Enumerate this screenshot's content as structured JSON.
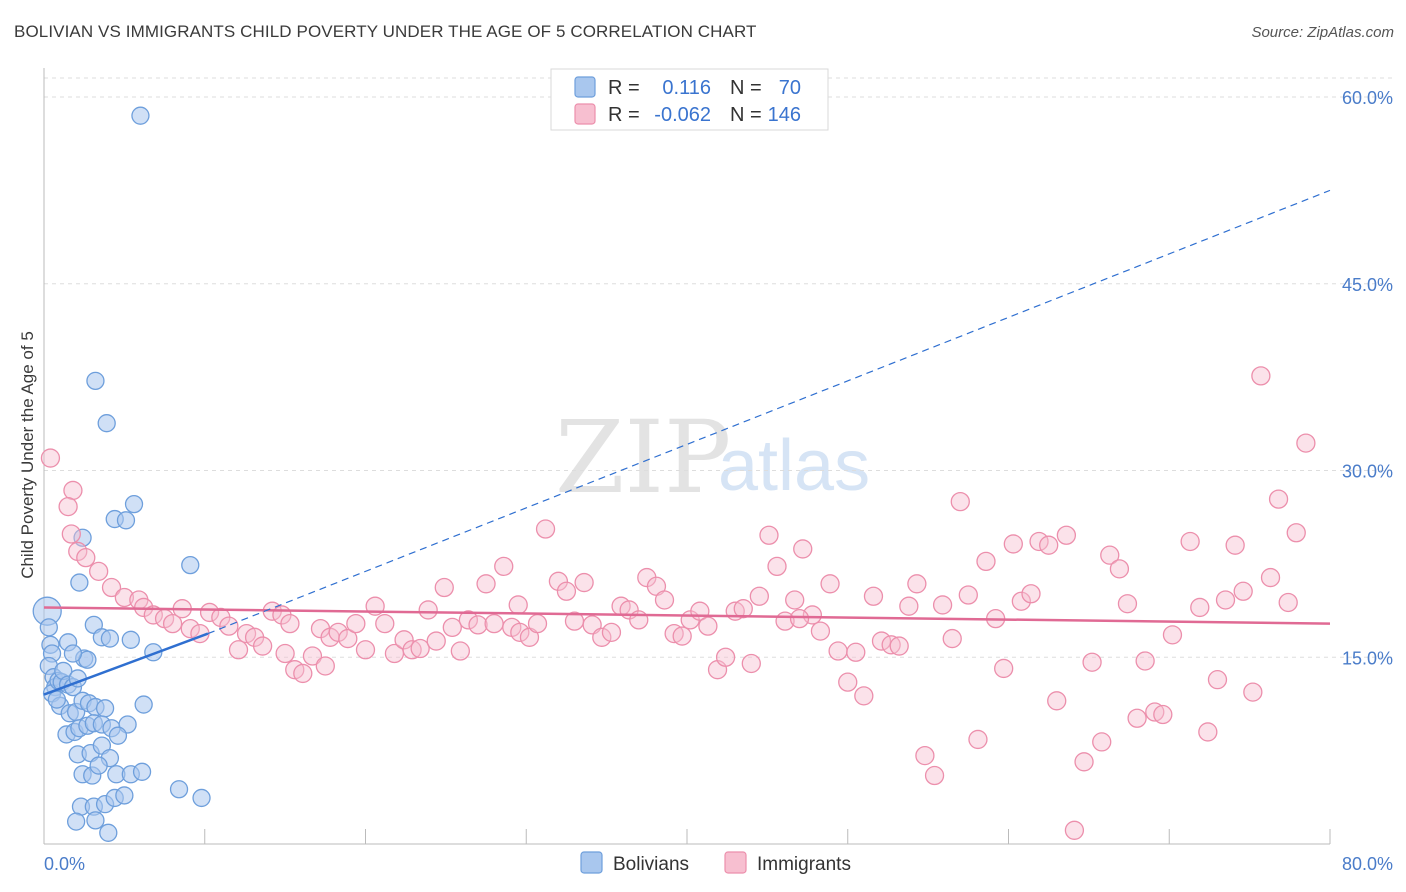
{
  "title": "BOLIVIAN VS IMMIGRANTS CHILD POVERTY UNDER THE AGE OF 5 CORRELATION CHART",
  "source": "Source: ZipAtlas.com",
  "watermark": {
    "zip": "ZIP",
    "atlas": "atlas"
  },
  "legend": {
    "r_label": "R =",
    "n_label": "N =",
    "rows": [
      {
        "series": "Bolivians",
        "r": "0.116",
        "n": "70"
      },
      {
        "series": "Immigrants",
        "r": "-0.062",
        "n": "146"
      }
    ]
  },
  "colors": {
    "bolivians_fill": "#a9c7ee",
    "bolivians_stroke": "#6e9fdc",
    "bolivians_line": "#2f6fd0",
    "immigrants_fill": "#f7bfd0",
    "immigrants_stroke": "#ec8fac",
    "immigrants_line": "#e06a94",
    "axis_text": "#4a7cc9",
    "grid": "#dddddd"
  },
  "chart_data": {
    "type": "scatter",
    "title": "BOLIVIAN VS IMMIGRANTS CHILD POVERTY UNDER THE AGE OF 5 CORRELATION CHART",
    "xlabel": "",
    "ylabel": "Child Poverty Under the Age of 5",
    "xlim": [
      0,
      80
    ],
    "ylim": [
      0,
      60
    ],
    "x_tick_labels": [
      "0.0%",
      "80.0%"
    ],
    "y_ticks": [
      15,
      30,
      45,
      60
    ],
    "y_tick_labels": [
      "15.0%",
      "30.0%",
      "45.0%",
      "60.0%"
    ],
    "grid": true,
    "legend_position": "top-center",
    "bottom_legend": [
      "Bolivians",
      "Immigrants"
    ],
    "series": [
      {
        "name": "Bolivians",
        "r": 0.116,
        "n": 70,
        "trend_solid": {
          "x": [
            0,
            10.2
          ],
          "y": [
            12.0,
            16.9
          ]
        },
        "trend_dashed": {
          "x": [
            10.2,
            80
          ],
          "y": [
            16.9,
            52.5
          ]
        },
        "points": [
          [
            0.2,
            18.7
          ],
          [
            0.3,
            17.4
          ],
          [
            0.4,
            16.0
          ],
          [
            0.5,
            15.3
          ],
          [
            0.3,
            14.3
          ],
          [
            0.6,
            13.4
          ],
          [
            0.7,
            12.6
          ],
          [
            0.5,
            12.1
          ],
          [
            0.9,
            13.1
          ],
          [
            1.1,
            13.0
          ],
          [
            1.2,
            13.9
          ],
          [
            1.5,
            12.8
          ],
          [
            1.8,
            12.6
          ],
          [
            2.1,
            13.3
          ],
          [
            2.5,
            14.9
          ],
          [
            1.0,
            11.1
          ],
          [
            1.6,
            10.5
          ],
          [
            2.0,
            10.6
          ],
          [
            2.4,
            11.5
          ],
          [
            2.8,
            11.3
          ],
          [
            3.2,
            11.0
          ],
          [
            3.8,
            10.9
          ],
          [
            1.4,
            8.8
          ],
          [
            1.9,
            9.0
          ],
          [
            2.2,
            9.3
          ],
          [
            2.7,
            9.5
          ],
          [
            3.1,
            9.7
          ],
          [
            3.6,
            9.6
          ],
          [
            4.2,
            9.3
          ],
          [
            5.2,
            9.6
          ],
          [
            4.6,
            8.7
          ],
          [
            2.1,
            7.2
          ],
          [
            2.9,
            7.3
          ],
          [
            3.6,
            7.9
          ],
          [
            4.1,
            6.9
          ],
          [
            2.4,
            5.6
          ],
          [
            3.0,
            5.5
          ],
          [
            3.4,
            6.3
          ],
          [
            4.5,
            5.6
          ],
          [
            5.4,
            5.6
          ],
          [
            6.1,
            5.8
          ],
          [
            2.3,
            3.0
          ],
          [
            3.1,
            3.0
          ],
          [
            3.8,
            3.2
          ],
          [
            4.4,
            3.7
          ],
          [
            5.0,
            3.9
          ],
          [
            8.4,
            4.4
          ],
          [
            9.8,
            3.7
          ],
          [
            2.0,
            1.8
          ],
          [
            3.2,
            1.9
          ],
          [
            4.0,
            0.9
          ],
          [
            2.2,
            21.0
          ],
          [
            3.1,
            17.6
          ],
          [
            1.5,
            16.2
          ],
          [
            2.7,
            14.8
          ],
          [
            3.6,
            16.6
          ],
          [
            4.1,
            16.5
          ],
          [
            5.4,
            16.4
          ],
          [
            6.8,
            15.4
          ],
          [
            1.8,
            15.3
          ],
          [
            2.4,
            24.6
          ],
          [
            3.2,
            37.2
          ],
          [
            3.9,
            33.8
          ],
          [
            4.4,
            26.1
          ],
          [
            5.1,
            26.0
          ],
          [
            5.6,
            27.3
          ],
          [
            9.1,
            22.4
          ],
          [
            6.0,
            58.5
          ],
          [
            6.2,
            11.2
          ],
          [
            0.8,
            11.6
          ]
        ]
      },
      {
        "name": "Immigrants",
        "r": -0.062,
        "n": 146,
        "trend": {
          "x": [
            0,
            80
          ],
          "y": [
            19.0,
            17.7
          ]
        },
        "points": [
          [
            0.4,
            31.0
          ],
          [
            1.8,
            28.4
          ],
          [
            1.5,
            27.1
          ],
          [
            1.7,
            24.9
          ],
          [
            2.1,
            23.5
          ],
          [
            2.6,
            23.0
          ],
          [
            3.4,
            21.9
          ],
          [
            4.2,
            20.6
          ],
          [
            5.0,
            19.8
          ],
          [
            5.9,
            19.6
          ],
          [
            6.2,
            19.0
          ],
          [
            6.8,
            18.4
          ],
          [
            7.5,
            18.1
          ],
          [
            8.0,
            17.7
          ],
          [
            8.6,
            18.9
          ],
          [
            9.1,
            17.3
          ],
          [
            9.7,
            16.9
          ],
          [
            10.3,
            18.6
          ],
          [
            11.0,
            18.2
          ],
          [
            11.5,
            17.5
          ],
          [
            12.1,
            15.6
          ],
          [
            12.6,
            16.9
          ],
          [
            13.1,
            16.6
          ],
          [
            13.6,
            15.9
          ],
          [
            14.2,
            18.7
          ],
          [
            14.8,
            18.4
          ],
          [
            15.3,
            17.7
          ],
          [
            15.6,
            14.0
          ],
          [
            16.1,
            13.7
          ],
          [
            16.7,
            15.1
          ],
          [
            17.2,
            17.3
          ],
          [
            17.8,
            16.6
          ],
          [
            18.3,
            17.0
          ],
          [
            18.9,
            16.5
          ],
          [
            19.4,
            17.7
          ],
          [
            20.0,
            15.6
          ],
          [
            20.6,
            19.1
          ],
          [
            21.2,
            17.7
          ],
          [
            21.8,
            15.3
          ],
          [
            22.4,
            16.4
          ],
          [
            22.9,
            15.6
          ],
          [
            23.4,
            15.7
          ],
          [
            23.9,
            18.8
          ],
          [
            24.4,
            16.3
          ],
          [
            24.9,
            20.6
          ],
          [
            25.4,
            17.4
          ],
          [
            25.9,
            15.5
          ],
          [
            26.4,
            18.0
          ],
          [
            27.0,
            17.6
          ],
          [
            27.5,
            20.9
          ],
          [
            28.0,
            17.7
          ],
          [
            28.6,
            22.3
          ],
          [
            29.1,
            17.4
          ],
          [
            29.6,
            17.0
          ],
          [
            30.2,
            16.6
          ],
          [
            30.7,
            17.7
          ],
          [
            31.2,
            25.3
          ],
          [
            32.0,
            21.1
          ],
          [
            32.5,
            20.3
          ],
          [
            33.0,
            17.9
          ],
          [
            33.6,
            21.0
          ],
          [
            34.1,
            17.6
          ],
          [
            34.7,
            16.6
          ],
          [
            35.3,
            17.0
          ],
          [
            35.9,
            19.1
          ],
          [
            36.4,
            18.8
          ],
          [
            37.0,
            18.0
          ],
          [
            37.5,
            21.4
          ],
          [
            38.1,
            20.7
          ],
          [
            38.6,
            19.6
          ],
          [
            39.2,
            16.9
          ],
          [
            39.7,
            16.7
          ],
          [
            40.2,
            18.0
          ],
          [
            40.8,
            18.7
          ],
          [
            41.3,
            17.5
          ],
          [
            41.9,
            14.0
          ],
          [
            42.4,
            15.0
          ],
          [
            43.0,
            18.7
          ],
          [
            43.5,
            18.9
          ],
          [
            44.0,
            14.5
          ],
          [
            44.5,
            19.9
          ],
          [
            45.1,
            24.8
          ],
          [
            45.6,
            22.3
          ],
          [
            46.1,
            17.9
          ],
          [
            46.7,
            19.6
          ],
          [
            47.2,
            23.7
          ],
          [
            47.8,
            18.4
          ],
          [
            48.3,
            17.1
          ],
          [
            48.9,
            20.9
          ],
          [
            49.4,
            15.5
          ],
          [
            50.0,
            13.0
          ],
          [
            50.5,
            15.4
          ],
          [
            51.0,
            11.9
          ],
          [
            51.6,
            19.9
          ],
          [
            52.1,
            16.3
          ],
          [
            52.7,
            16.0
          ],
          [
            53.2,
            15.9
          ],
          [
            53.8,
            19.1
          ],
          [
            54.3,
            20.9
          ],
          [
            54.8,
            7.1
          ],
          [
            55.4,
            5.5
          ],
          [
            55.9,
            19.2
          ],
          [
            56.5,
            16.5
          ],
          [
            57.0,
            27.5
          ],
          [
            57.5,
            20.0
          ],
          [
            58.1,
            8.4
          ],
          [
            58.6,
            22.7
          ],
          [
            59.2,
            18.1
          ],
          [
            59.7,
            14.1
          ],
          [
            60.3,
            24.1
          ],
          [
            60.8,
            19.5
          ],
          [
            61.4,
            20.1
          ],
          [
            61.9,
            24.3
          ],
          [
            62.5,
            24.0
          ],
          [
            63.0,
            11.5
          ],
          [
            63.6,
            24.8
          ],
          [
            64.1,
            1.1
          ],
          [
            64.7,
            6.6
          ],
          [
            65.2,
            14.6
          ],
          [
            65.8,
            8.2
          ],
          [
            66.3,
            23.2
          ],
          [
            66.9,
            22.1
          ],
          [
            67.4,
            19.3
          ],
          [
            68.0,
            10.1
          ],
          [
            68.5,
            14.7
          ],
          [
            69.1,
            10.6
          ],
          [
            69.6,
            10.4
          ],
          [
            70.2,
            16.8
          ],
          [
            71.3,
            24.3
          ],
          [
            71.9,
            19.0
          ],
          [
            72.4,
            9.0
          ],
          [
            73.0,
            13.2
          ],
          [
            73.5,
            19.6
          ],
          [
            74.1,
            24.0
          ],
          [
            74.6,
            20.3
          ],
          [
            75.2,
            12.2
          ],
          [
            75.7,
            37.6
          ],
          [
            76.3,
            21.4
          ],
          [
            76.8,
            27.7
          ],
          [
            77.4,
            19.4
          ],
          [
            77.9,
            25.0
          ],
          [
            78.5,
            32.2
          ],
          [
            17.5,
            14.3
          ],
          [
            15.0,
            15.3
          ],
          [
            29.5,
            19.2
          ],
          [
            47.0,
            18.1
          ]
        ]
      }
    ]
  }
}
